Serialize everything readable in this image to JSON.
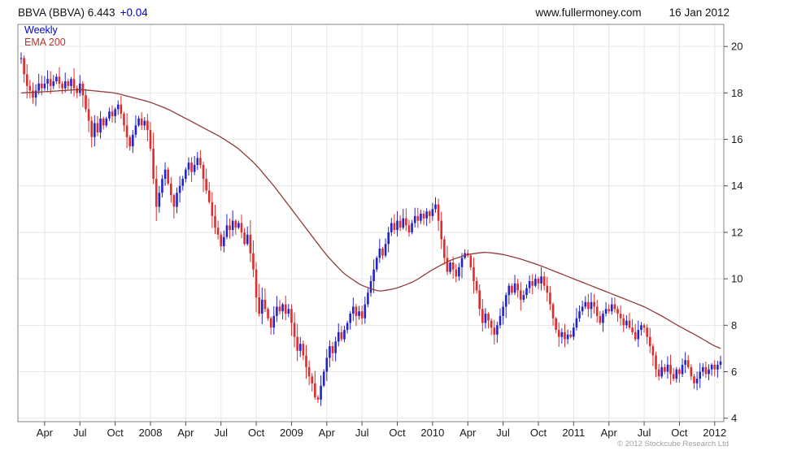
{
  "header": {
    "symbol_label": "BBVA (BBVA) 6.443",
    "change_label": "+0.04",
    "site_label": "www.fullermoney.com",
    "date_label": "16 Jan 2012"
  },
  "overlay": {
    "timeframe_label": "Weekly",
    "ema_label": "EMA 200"
  },
  "footer": {
    "copyright_label": "© 2012 Stockcube Research Ltd"
  },
  "colors": {
    "up": "#2323cd",
    "down": "#de2b2b",
    "ema": "#923a3a",
    "grid": "#e6e6e6",
    "frame": "#848484",
    "tick": "#4a4a4a",
    "label": "#1a1a1a",
    "weekly_text": "#0000d0",
    "ema_text": "#b83232",
    "copyright": "#a0a0a0"
  },
  "chart_data": {
    "type": "candlestick",
    "timeframe": "weekly",
    "instrument": "BBVA (BBVA)",
    "last_price": 6.443,
    "change": 0.04,
    "overlay_series": "EMA 200",
    "ylim": [
      3.85,
      20.95
    ],
    "yticks": [
      4,
      6,
      8,
      10,
      12,
      14,
      16,
      18,
      20
    ],
    "xlabels": [
      {
        "label": "Apr",
        "idx": 8
      },
      {
        "label": "Jul",
        "idx": 20
      },
      {
        "label": "Oct",
        "idx": 32
      },
      {
        "label": "2008",
        "idx": 44
      },
      {
        "label": "Apr",
        "idx": 56
      },
      {
        "label": "Jul",
        "idx": 68
      },
      {
        "label": "Oct",
        "idx": 80
      },
      {
        "label": "2009",
        "idx": 92
      },
      {
        "label": "Apr",
        "idx": 104
      },
      {
        "label": "Jul",
        "idx": 116
      },
      {
        "label": "Oct",
        "idx": 128
      },
      {
        "label": "2010",
        "idx": 140
      },
      {
        "label": "Apr",
        "idx": 152
      },
      {
        "label": "Jul",
        "idx": 164
      },
      {
        "label": "Oct",
        "idx": 176
      },
      {
        "label": "2011",
        "idx": 188
      },
      {
        "label": "Apr",
        "idx": 200
      },
      {
        "label": "Jul",
        "idx": 212
      },
      {
        "label": "Oct",
        "idx": 224
      },
      {
        "label": "2012",
        "idx": 236
      }
    ],
    "closes": [
      19.5,
      18.8,
      18.3,
      18.1,
      17.8,
      18.1,
      18.4,
      18.2,
      18.4,
      18.6,
      18.3,
      18.5,
      18.7,
      18.4,
      18.2,
      18.5,
      18.3,
      18.6,
      18.2,
      18.0,
      18.4,
      17.9,
      17.3,
      16.8,
      16.1,
      16.7,
      16.3,
      16.9,
      16.6,
      16.9,
      17.2,
      17.0,
      17.3,
      17.5,
      17.1,
      16.6,
      16.1,
      15.7,
      16.2,
      16.6,
      16.9,
      16.6,
      16.8,
      16.4,
      15.6,
      14.3,
      13.1,
      13.7,
      14.3,
      14.7,
      14.1,
      13.6,
      13.1,
      13.7,
      14.0,
      14.3,
      14.7,
      15.0,
      14.6,
      14.9,
      15.2,
      14.9,
      14.3,
      13.8,
      13.3,
      12.7,
      12.2,
      11.9,
      11.4,
      11.8,
      12.3,
      12.1,
      12.5,
      12.2,
      12.4,
      12.0,
      11.5,
      11.9,
      11.1,
      10.4,
      9.2,
      8.5,
      9.1,
      8.7,
      8.3,
      7.9,
      8.4,
      8.8,
      8.6,
      8.9,
      8.5,
      8.7,
      8.1,
      7.5,
      6.9,
      7.2,
      6.7,
      6.2,
      5.8,
      5.5,
      4.9,
      4.8,
      5.4,
      6.0,
      6.6,
      7.1,
      6.8,
      7.3,
      7.7,
      7.4,
      7.8,
      8.1,
      8.5,
      8.8,
      8.4,
      8.6,
      8.3,
      8.9,
      9.4,
      9.9,
      10.4,
      10.9,
      11.3,
      11.0,
      11.5,
      12.0,
      12.4,
      12.1,
      12.5,
      12.2,
      12.6,
      12.3,
      12.0,
      12.4,
      12.7,
      12.5,
      12.8,
      12.6,
      12.9,
      12.7,
      13.0,
      13.2,
      12.5,
      11.7,
      10.9,
      10.3,
      10.7,
      10.4,
      10.1,
      10.5,
      10.9,
      11.1,
      11.0,
      10.5,
      9.9,
      9.5,
      8.7,
      8.1,
      8.5,
      8.2,
      7.9,
      7.6,
      8.0,
      8.4,
      8.8,
      9.3,
      9.7,
      9.4,
      9.8,
      9.5,
      9.1,
      9.3,
      9.6,
      9.9,
      9.7,
      10.0,
      9.8,
      10.1,
      9.7,
      9.4,
      8.9,
      8.3,
      7.8,
      7.5,
      7.7,
      7.4,
      7.6,
      7.5,
      7.9,
      8.3,
      8.6,
      8.8,
      9.0,
      8.7,
      9.0,
      8.8,
      8.4,
      8.1,
      8.5,
      8.7,
      8.6,
      8.9,
      8.7,
      8.5,
      8.3,
      8.0,
      8.2,
      7.9,
      7.7,
      7.4,
      7.8,
      8.0,
      7.9,
      7.5,
      7.1,
      6.7,
      6.1,
      5.8,
      6.2,
      6.0,
      6.3,
      5.9,
      5.7,
      6.1,
      5.9,
      6.3,
      6.5,
      6.2,
      5.8,
      5.5,
      5.7,
      6.0,
      6.2,
      5.9,
      6.1,
      6.3,
      6.1,
      6.3,
      6.443
    ],
    "ema_anchors": [
      [
        0,
        18.0
      ],
      [
        8,
        18.05
      ],
      [
        20,
        18.15
      ],
      [
        32,
        18.0
      ],
      [
        44,
        17.6
      ],
      [
        50,
        17.3
      ],
      [
        56,
        16.9
      ],
      [
        62,
        16.5
      ],
      [
        68,
        16.1
      ],
      [
        74,
        15.6
      ],
      [
        80,
        14.9
      ],
      [
        86,
        14.0
      ],
      [
        92,
        13.0
      ],
      [
        98,
        12.0
      ],
      [
        104,
        11.0
      ],
      [
        110,
        10.2
      ],
      [
        116,
        9.7
      ],
      [
        122,
        9.45
      ],
      [
        128,
        9.6
      ],
      [
        134,
        9.9
      ],
      [
        140,
        10.4
      ],
      [
        146,
        10.8
      ],
      [
        152,
        11.05
      ],
      [
        158,
        11.15
      ],
      [
        164,
        11.05
      ],
      [
        170,
        10.85
      ],
      [
        176,
        10.6
      ],
      [
        182,
        10.3
      ],
      [
        188,
        10.0
      ],
      [
        194,
        9.7
      ],
      [
        200,
        9.4
      ],
      [
        206,
        9.1
      ],
      [
        212,
        8.8
      ],
      [
        218,
        8.4
      ],
      [
        224,
        7.95
      ],
      [
        230,
        7.55
      ],
      [
        236,
        7.1
      ],
      [
        238,
        7.0
      ]
    ]
  }
}
